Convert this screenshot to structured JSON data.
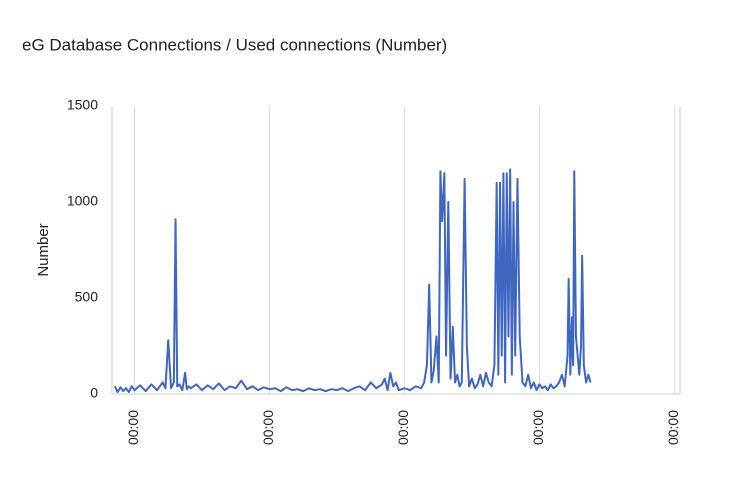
{
  "chart_data": {
    "type": "line",
    "title": "eG Database Connections / Used connections (Number)",
    "y_label": "Number",
    "x": [
      -3.5,
      -3,
      -2.5,
      -2,
      -1.5,
      -1,
      -0.5,
      0,
      1,
      2,
      3,
      4,
      5,
      5.5,
      6,
      6.5,
      7,
      7.3,
      7.6,
      8,
      8.5,
      9,
      9.3,
      9.6,
      10,
      11,
      12,
      13,
      14,
      15,
      16,
      17,
      18,
      19,
      20,
      21,
      22,
      23,
      24,
      25,
      26,
      27,
      28,
      29,
      30,
      31,
      32,
      33,
      34,
      35,
      36,
      37,
      38,
      39,
      40,
      41,
      42,
      43,
      44,
      44.5,
      45,
      45.5,
      46,
      46.5,
      47,
      48,
      49,
      50,
      51,
      51.5,
      52,
      52.4,
      52.8,
      53.2,
      53.7,
      54.1,
      54.4,
      54.7,
      55.1,
      55.4,
      55.8,
      56.2,
      56.6,
      57,
      57.4,
      57.8,
      58.2,
      58.7,
      59.1,
      59.5,
      60,
      60.5,
      61,
      61.5,
      62,
      62.5,
      63,
      63.5,
      64,
      64.4,
      64.7,
      65,
      65.3,
      65.6,
      65.9,
      66.2,
      66.5,
      66.8,
      67.1,
      67.4,
      67.7,
      68.1,
      68.5,
      69,
      69.5,
      70,
      70.5,
      71,
      71.5,
      72,
      72.5,
      73,
      73.5,
      74,
      74.5,
      75,
      75.5,
      76,
      76.5,
      77,
      77.2,
      77.5,
      77.8,
      78,
      78.2,
      78.5,
      78.8,
      79.1,
      79.4,
      79.6,
      79.9,
      80.3,
      80.7,
      81.1
    ],
    "series": [
      {
        "name": "Used connections",
        "color": "#3f67c2",
        "values": [
          40,
          10,
          35,
          15,
          30,
          10,
          40,
          20,
          45,
          15,
          50,
          20,
          60,
          30,
          280,
          30,
          60,
          910,
          40,
          50,
          20,
          110,
          25,
          40,
          30,
          50,
          20,
          45,
          25,
          55,
          20,
          40,
          30,
          70,
          25,
          40,
          20,
          35,
          25,
          30,
          15,
          35,
          20,
          25,
          15,
          30,
          20,
          25,
          15,
          25,
          20,
          30,
          15,
          30,
          40,
          20,
          60,
          30,
          50,
          80,
          20,
          110,
          40,
          60,
          20,
          30,
          20,
          40,
          30,
          60,
          150,
          570,
          60,
          120,
          300,
          60,
          1160,
          900,
          1150,
          200,
          1000,
          80,
          350,
          60,
          100,
          40,
          60,
          1120,
          250,
          40,
          80,
          30,
          50,
          100,
          40,
          110,
          60,
          40,
          150,
          1100,
          100,
          1100,
          200,
          1150,
          60,
          1150,
          300,
          1170,
          100,
          1000,
          200,
          1120,
          300,
          60,
          40,
          100,
          30,
          60,
          20,
          50,
          30,
          40,
          20,
          50,
          30,
          40,
          60,
          100,
          40,
          200,
          600,
          100,
          400,
          150,
          1160,
          300,
          200,
          100,
          250,
          720,
          150,
          60,
          100,
          60
        ]
      }
    ],
    "xlim": [
      -4,
      97
    ],
    "xticks": [
      {
        "value": 0,
        "label": "00:00"
      },
      {
        "value": 24,
        "label": "00:00"
      },
      {
        "value": 48,
        "label": "00:00"
      },
      {
        "value": 72,
        "label": "00:00"
      },
      {
        "value": 96,
        "label": "00:00"
      }
    ],
    "ylim": [
      0,
      1500
    ],
    "yticks": [
      0,
      500,
      1000,
      1500
    ],
    "grid": "vertical"
  }
}
